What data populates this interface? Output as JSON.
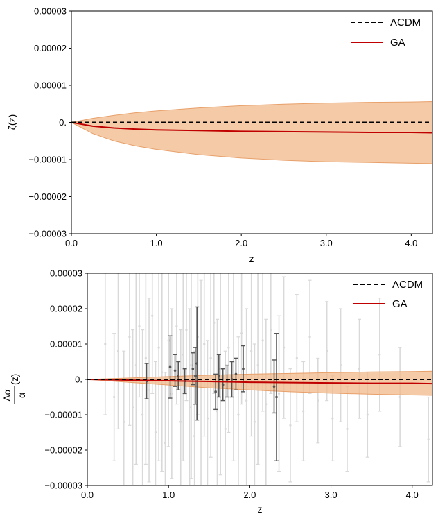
{
  "chart_data": [
    {
      "type": "line",
      "xlabel": "z",
      "ylabel": "ζ(z)",
      "xlim": [
        0,
        4.25
      ],
      "ylim": [
        -3e-05,
        3e-05
      ],
      "x_ticks": [
        0,
        1,
        2,
        3,
        4
      ],
      "x_tick_labels": [
        "0.0",
        "1.0",
        "2.0",
        "3.0",
        "4.0"
      ],
      "y_ticks": [
        3e-05,
        2e-05,
        1e-05,
        0,
        -1e-05,
        -2e-05,
        -3e-05
      ],
      "y_tick_labels": [
        "0.00003",
        "0.00002",
        "0.00001",
        "0.",
        "−0.00001",
        "−0.00002",
        "−0.00003"
      ],
      "grid": false,
      "legend_position": "top-right",
      "series": [
        {
          "name": "ΛCDM",
          "style": "dashed",
          "color": "#000000",
          "x": [
            0,
            4.25
          ],
          "y": [
            0,
            0
          ]
        },
        {
          "name": "GA",
          "style": "solid",
          "color": "#c00000",
          "x": [
            0,
            0.25,
            0.5,
            0.75,
            1.0,
            1.5,
            2.0,
            2.5,
            3.0,
            3.5,
            4.0,
            4.25
          ],
          "y": [
            0,
            -1e-06,
            -1.5e-06,
            -1.8e-06,
            -2e-06,
            -2.2e-06,
            -2.4e-06,
            -2.5e-06,
            -2.6e-06,
            -2.7e-06,
            -2.7e-06,
            -2.8e-06
          ]
        }
      ],
      "band": {
        "color": "#f0b88a",
        "x": [
          0,
          0.25,
          0.5,
          0.75,
          1.0,
          1.5,
          2.0,
          2.5,
          3.0,
          3.5,
          4.0,
          4.25
        ],
        "upper": [
          0,
          1.1e-06,
          1.9e-06,
          2.6e-06,
          3.1e-06,
          3.9e-06,
          4.5e-06,
          4.9e-06,
          5.2e-06,
          5.4e-06,
          5.5e-06,
          5.6e-06
        ],
        "lower": [
          0,
          -3e-06,
          -5e-06,
          -6.3e-06,
          -7.3e-06,
          -8.7e-06,
          -9.6e-06,
          -1.02e-05,
          -1.06e-05,
          -1.08e-05,
          -1.1e-05,
          -1.11e-05
        ]
      }
    },
    {
      "type": "line",
      "xlabel": "z",
      "ylabel_num": "Δα",
      "ylabel_den": "α",
      "ylabel_suffix": "(z)",
      "xlim": [
        0,
        4.25
      ],
      "ylim": [
        -3e-05,
        3e-05
      ],
      "x_ticks": [
        0,
        1,
        2,
        3,
        4
      ],
      "x_tick_labels": [
        "0.0",
        "1.0",
        "2.0",
        "3.0",
        "4.0"
      ],
      "y_ticks": [
        3e-05,
        2e-05,
        1e-05,
        0,
        -1e-05,
        -2e-05,
        -3e-05
      ],
      "y_tick_labels": [
        "0.00003",
        "0.00002",
        "0.00001",
        "0.",
        "−0.00001",
        "−0.00002",
        "−0.00003"
      ],
      "grid": false,
      "legend_position": "top-right",
      "series": [
        {
          "name": "ΛCDM",
          "style": "dashed",
          "color": "#000000",
          "x": [
            0,
            4.25
          ],
          "y": [
            0,
            0
          ]
        },
        {
          "name": "GA",
          "style": "solid",
          "color": "#c00000",
          "x": [
            0,
            0.5,
            1.0,
            1.5,
            2.0,
            2.5,
            3.0,
            3.5,
            4.0,
            4.25
          ],
          "y": [
            0,
            -2e-07,
            -4e-07,
            -6e-07,
            -8e-07,
            -9e-07,
            -1e-06,
            -1.1e-06,
            -1.1e-06,
            -1.2e-06
          ]
        }
      ],
      "band": {
        "color": "#f0b88a",
        "x": [
          0,
          0.5,
          1.0,
          1.5,
          2.0,
          2.5,
          3.0,
          3.5,
          4.0,
          4.25
        ],
        "upper": [
          0,
          4e-07,
          8e-07,
          1.2e-06,
          1.5e-06,
          1.7e-06,
          1.9e-06,
          2.1e-06,
          2.2e-06,
          2.3e-06
        ],
        "lower": [
          0,
          -8e-07,
          -1.6e-06,
          -2.4e-06,
          -3e-06,
          -3.5e-06,
          -3.9e-06,
          -4.2e-06,
          -4.4e-06,
          -4.5e-06
        ]
      },
      "errorbars_dark": {
        "color": "#555555",
        "x": [
          0.73,
          1.02,
          1.08,
          1.12,
          1.2,
          1.3,
          1.33,
          1.35,
          1.58,
          1.62,
          1.67,
          1.72,
          1.78,
          1.83,
          1.92,
          2.3,
          2.33
        ],
        "y": [
          -5e-07,
          3.5e-06,
          2.5e-06,
          1e-06,
          -5e-07,
          3e-06,
          1e-06,
          4.5e-06,
          -3.5e-06,
          1e-06,
          -1.5e-06,
          -5e-07,
          0.0,
          1.5e-06,
          3e-06,
          -2e-06,
          -5e-06
        ],
        "err": [
          5e-06,
          8.8e-06,
          4.5e-06,
          4e-06,
          3.5e-06,
          4.5e-06,
          8e-06,
          1.6e-05,
          5e-06,
          6e-06,
          4.5e-06,
          4.5e-06,
          5e-06,
          4.5e-06,
          6.5e-06,
          7.5e-06,
          1.8e-05
        ]
      },
      "errorbars_light": {
        "color": "#d9d9d9",
        "x": [
          0.22,
          0.33,
          0.38,
          0.45,
          0.52,
          0.56,
          0.6,
          0.64,
          0.68,
          0.72,
          0.76,
          0.8,
          0.84,
          0.88,
          0.92,
          0.96,
          1.0,
          1.04,
          1.1,
          1.15,
          1.18,
          1.22,
          1.26,
          1.28,
          1.32,
          1.36,
          1.4,
          1.44,
          1.48,
          1.52,
          1.56,
          1.6,
          1.64,
          1.7,
          1.74,
          1.8,
          1.86,
          1.9,
          1.96,
          2.02,
          2.06,
          2.1,
          2.16,
          2.2,
          2.26,
          2.36,
          2.42,
          2.5,
          2.58,
          2.66,
          2.74,
          2.84,
          2.95,
          3.02,
          3.12,
          3.2,
          3.35,
          3.45,
          3.6,
          3.85,
          4.2
        ],
        "y": [
          1e-05,
          -5e-06,
          8e-06,
          -1.2e-05,
          1.2e-05,
          -8e-06,
          4e-06,
          1.5e-05,
          -1e-05,
          6e-06,
          -3e-06,
          1.8e-05,
          -1.5e-05,
          9e-06,
          2e-06,
          -1.8e-05,
          1.1e-05,
          -4e-06,
          1.5e-05,
          -1.2e-05,
          7e-06,
          1.4e-05,
          -8e-06,
          4e-06,
          -1.6e-05,
          1.2e-05,
          -2e-06,
          1e-05,
          -1.1e-05,
          6e-06,
          1.6e-05,
          -9e-06,
          3e-06,
          -1.4e-05,
          9e-06,
          5e-06,
          -1e-05,
          1.3e-05,
          -6e-06,
          8e-06,
          -1.2e-05,
          4e-06,
          1.1e-05,
          -7e-06,
          1.4e-05,
          -4e-06,
          9e-06,
          -1.3e-05,
          6e-06,
          -9e-06,
          1.2e-05,
          -6e-06,
          8e-06,
          -1.1e-05,
          4e-06,
          -1.4e-05,
          3e-06,
          -1e-05,
          7e-06,
          -5e-06,
          -1.7e-05
        ],
        "err": [
          2e-05,
          1.8e-05,
          2.2e-05,
          2e-05,
          2.5e-05,
          2.2e-05,
          2.8e-05,
          2e-05,
          2.4e-05,
          3e-05,
          2.6e-05,
          2.2e-05,
          2e-05,
          3.2e-05,
          2.8e-05,
          2e-05,
          3e-05,
          2.4e-05,
          2.2e-05,
          2.6e-05,
          3e-05,
          2e-05,
          2.8e-05,
          3.2e-05,
          2.4e-05,
          2.2e-05,
          3e-05,
          2.6e-05,
          2.2e-05,
          2.8e-05,
          2e-05,
          2.6e-05,
          3e-05,
          2.2e-05,
          2.4e-05,
          2.8e-05,
          2.2e-05,
          2e-05,
          2.6e-05,
          2.4e-05,
          2.2e-05,
          2.8e-05,
          2e-05,
          2.4e-05,
          1.8e-05,
          2.2e-05,
          2e-05,
          1.6e-05,
          1.8e-05,
          1.4e-05,
          1.6e-05,
          1.2e-05,
          1.4e-05,
          1.2e-05,
          1.6e-05,
          1.2e-05,
          1.4e-05,
          1.2e-05,
          1.6e-05,
          1.4e-05,
          1.2e-05
        ]
      }
    }
  ]
}
